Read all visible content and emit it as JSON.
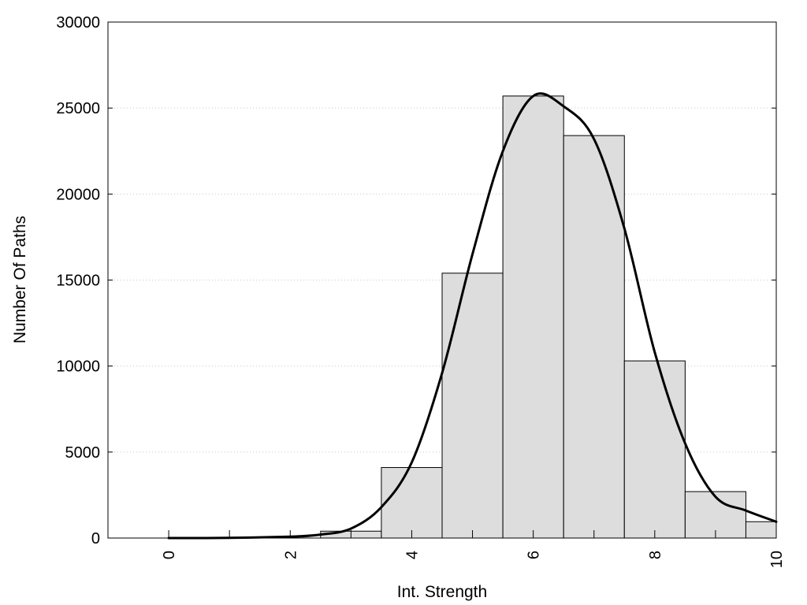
{
  "chart_data": {
    "type": "bar",
    "title": "",
    "xlabel": "Int. Strength",
    "ylabel": "Number Of Paths",
    "xlim": [
      -1,
      10
    ],
    "ylim": [
      0,
      30000
    ],
    "grid": "horizontal-dotted",
    "x_ticks": [
      "0",
      "2",
      "4",
      "6",
      "8",
      "10"
    ],
    "y_ticks": [
      "0",
      "5000",
      "10000",
      "15000",
      "20000",
      "25000",
      "30000"
    ],
    "bars": {
      "x": [
        0,
        1,
        2,
        3,
        4,
        5,
        6,
        7,
        8,
        9,
        10
      ],
      "values": [
        0,
        0,
        0,
        400,
        4100,
        15400,
        25700,
        23400,
        10300,
        2700,
        950
      ]
    },
    "density_curve": {
      "x": [
        0,
        1,
        2,
        2.5,
        3,
        3.5,
        4,
        4.5,
        5,
        5.5,
        6,
        6.5,
        7,
        7.5,
        8,
        8.5,
        9,
        9.5,
        10
      ],
      "y": [
        0,
        10,
        80,
        200,
        550,
        1800,
        4400,
        9600,
        16500,
        22500,
        25700,
        25100,
        23200,
        18000,
        10800,
        5500,
        2400,
        1600,
        950
      ]
    }
  }
}
